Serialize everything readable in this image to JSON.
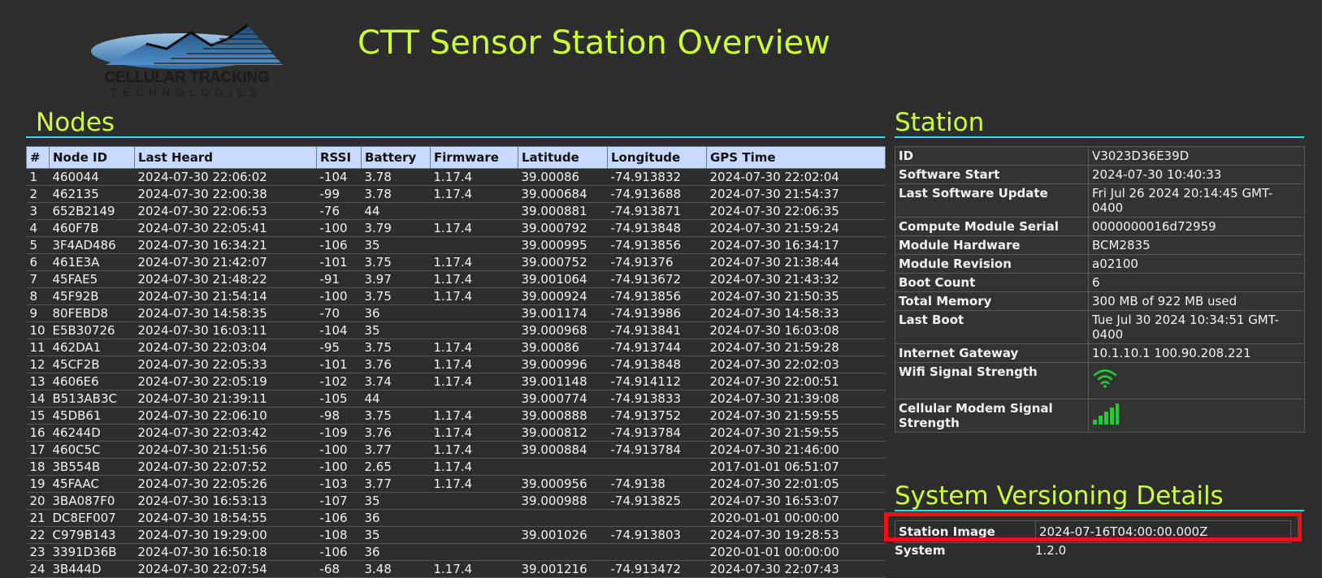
{
  "logo": {
    "line1": "CELLULAR TRACKING",
    "line2": "TECHNOLOGIES"
  },
  "page_title": "CTT Sensor Station Overview",
  "nodes": {
    "heading": "Nodes",
    "columns": [
      "#",
      "Node ID",
      "Last Heard",
      "RSSI",
      "Battery",
      "Firmware",
      "Latitude",
      "Longitude",
      "GPS Time"
    ],
    "rows": [
      [
        "1",
        "460044",
        "2024-07-30 22:06:02",
        "-104",
        "3.78",
        "1.17.4",
        "39.00086",
        "-74.913832",
        "2024-07-30 22:02:04"
      ],
      [
        "2",
        "462135",
        "2024-07-30 22:00:38",
        "-99",
        "3.78",
        "1.17.4",
        "39.000684",
        "-74.913688",
        "2024-07-30 21:54:37"
      ],
      [
        "3",
        "652B2149",
        "2024-07-30 22:06:53",
        "-76",
        "44",
        "",
        "39.000881",
        "-74.913871",
        "2024-07-30 22:06:35"
      ],
      [
        "4",
        "460F7B",
        "2024-07-30 22:05:41",
        "-100",
        "3.79",
        "1.17.4",
        "39.000792",
        "-74.913848",
        "2024-07-30 21:59:24"
      ],
      [
        "5",
        "3F4AD486",
        "2024-07-30 16:34:21",
        "-106",
        "35",
        "",
        "39.000995",
        "-74.913856",
        "2024-07-30 16:34:17"
      ],
      [
        "6",
        "461E3A",
        "2024-07-30 21:42:07",
        "-101",
        "3.75",
        "1.17.4",
        "39.000752",
        "-74.91376",
        "2024-07-30 21:38:44"
      ],
      [
        "7",
        "45FAE5",
        "2024-07-30 21:48:22",
        "-91",
        "3.97",
        "1.17.4",
        "39.001064",
        "-74.913672",
        "2024-07-30 21:43:32"
      ],
      [
        "8",
        "45F92B",
        "2024-07-30 21:54:14",
        "-100",
        "3.75",
        "1.17.4",
        "39.000924",
        "-74.913856",
        "2024-07-30 21:50:35"
      ],
      [
        "9",
        "80FEBD8",
        "2024-07-30 14:58:35",
        "-70",
        "36",
        "",
        "39.001174",
        "-74.913986",
        "2024-07-30 14:58:33"
      ],
      [
        "10",
        "E5B30726",
        "2024-07-30 16:03:11",
        "-104",
        "35",
        "",
        "39.000968",
        "-74.913841",
        "2024-07-30 16:03:08"
      ],
      [
        "11",
        "462DA1",
        "2024-07-30 22:03:04",
        "-95",
        "3.75",
        "1.17.4",
        "39.00086",
        "-74.913744",
        "2024-07-30 21:59:28"
      ],
      [
        "12",
        "45CF2B",
        "2024-07-30 22:05:33",
        "-101",
        "3.76",
        "1.17.4",
        "39.000996",
        "-74.913848",
        "2024-07-30 22:02:03"
      ],
      [
        "13",
        "4606E6",
        "2024-07-30 22:05:19",
        "-102",
        "3.74",
        "1.17.4",
        "39.001148",
        "-74.914112",
        "2024-07-30 22:00:51"
      ],
      [
        "14",
        "B513AB3C",
        "2024-07-30 21:39:11",
        "-105",
        "44",
        "",
        "39.000774",
        "-74.913833",
        "2024-07-30 21:39:08"
      ],
      [
        "15",
        "45DB61",
        "2024-07-30 22:06:10",
        "-98",
        "3.75",
        "1.17.4",
        "39.000888",
        "-74.913752",
        "2024-07-30 21:59:55"
      ],
      [
        "16",
        "46244D",
        "2024-07-30 22:03:42",
        "-109",
        "3.76",
        "1.17.4",
        "39.000812",
        "-74.913784",
        "2024-07-30 21:59:55"
      ],
      [
        "17",
        "460C5C",
        "2024-07-30 21:51:56",
        "-100",
        "3.77",
        "1.17.4",
        "39.000884",
        "-74.913784",
        "2024-07-30 21:46:00"
      ],
      [
        "18",
        "3B554B",
        "2024-07-30 22:07:52",
        "-100",
        "2.65",
        "1.17.4",
        "",
        "",
        "2017-01-01 06:51:07"
      ],
      [
        "19",
        "45FAAC",
        "2024-07-30 22:05:26",
        "-103",
        "3.77",
        "1.17.4",
        "39.000956",
        "-74.9138",
        "2024-07-30 22:01:05"
      ],
      [
        "20",
        "3BA087F0",
        "2024-07-30 16:53:13",
        "-107",
        "35",
        "",
        "39.000988",
        "-74.913825",
        "2024-07-30 16:53:07"
      ],
      [
        "21",
        "DC8EF007",
        "2024-07-30 18:54:55",
        "-106",
        "36",
        "",
        "",
        "",
        "2020-01-01 00:00:00"
      ],
      [
        "22",
        "C979B143",
        "2024-07-30 19:29:00",
        "-108",
        "35",
        "",
        "39.001026",
        "-74.913803",
        "2024-07-30 19:28:53"
      ],
      [
        "23",
        "3391D36B",
        "2024-07-30 16:50:18",
        "-106",
        "36",
        "",
        "",
        "",
        "2020-01-01 00:00:00"
      ],
      [
        "24",
        "3B444D",
        "2024-07-30 22:07:54",
        "-68",
        "3.48",
        "1.17.4",
        "39.001216",
        "-74.913472",
        "2024-07-30 22:07:43"
      ]
    ]
  },
  "station": {
    "heading": "Station",
    "rows": [
      {
        "key": "ID",
        "value": "V3023D36E39D"
      },
      {
        "key": "Software Start",
        "value": "2024-07-30 10:40:33"
      },
      {
        "key": "Last Software Update",
        "value": "Fri Jul 26 2024 20:14:45 GMT-0400"
      },
      {
        "key": "Compute Module Serial",
        "value": "0000000016d72959"
      },
      {
        "key": "Module Hardware",
        "value": "BCM2835"
      },
      {
        "key": "Module Revision",
        "value": "a02100"
      },
      {
        "key": "Boot Count",
        "value": "6"
      },
      {
        "key": "Total Memory",
        "value": "300 MB of 922 MB used"
      },
      {
        "key": "Last Boot",
        "value": "Tue Jul 30 2024 10:34:51 GMT-0400"
      },
      {
        "key": "Internet Gateway",
        "value": "10.1.10.1 100.90.208.221"
      }
    ],
    "wifi_label": "Wifi Signal Strength",
    "wifi_icon": "wifi-icon",
    "cellular_label": "Cellular Modem Signal Strength",
    "cellular_icon": "signal-bars-icon",
    "signal_color": "#22cc33"
  },
  "versioning": {
    "heading": "System Versioning Details",
    "station_image_label": "Station Image",
    "station_image_value": "2024-07-16T04:00:00.000Z",
    "system_label": "System",
    "system_value": "1.2.0"
  },
  "colors": {
    "accent": "#ccff33",
    "rule": "#33e0e8",
    "highlight": "#ee1111",
    "header_bg": "#c8daff"
  }
}
